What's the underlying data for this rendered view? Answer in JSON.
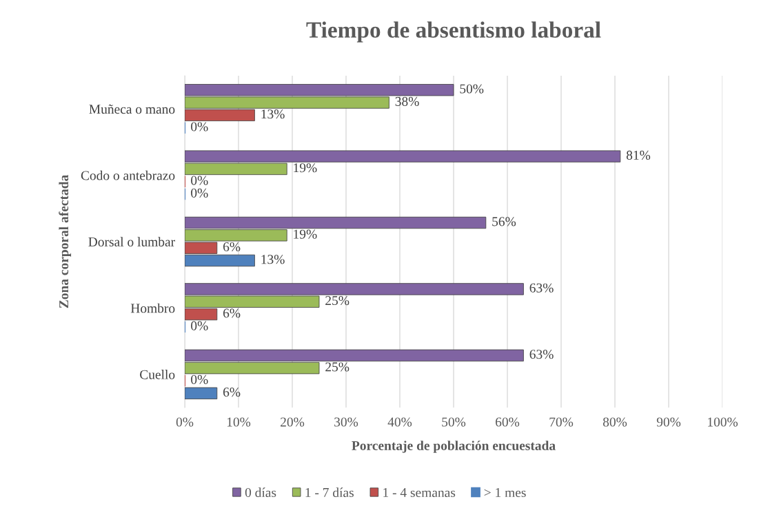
{
  "chart_data": {
    "type": "bar",
    "orientation": "horizontal",
    "title": "Tiempo de absentismo laboral",
    "xlabel": "Porcentaje de población encuestada",
    "ylabel": "Zona corporal afectada",
    "categories": [
      "Muñeca o mano",
      "Codo o antebrazo",
      "Dorsal o lumbar",
      "Hombro",
      "Cuello"
    ],
    "series": [
      {
        "name": "0 días",
        "color": "#8064a2",
        "values": [
          50,
          81,
          56,
          63,
          63
        ],
        "value_labels": [
          "50%",
          "81%",
          "56%",
          "63%",
          "63%"
        ]
      },
      {
        "name": "1 - 7 días",
        "color": "#9bbb59",
        "values": [
          38,
          19,
          19,
          25,
          25
        ],
        "value_labels": [
          "38%",
          "19%",
          "19%",
          "25%",
          "25%"
        ]
      },
      {
        "name": "1 - 4 semanas",
        "color": "#c0504d",
        "values": [
          13,
          0,
          6,
          6,
          0
        ],
        "value_labels": [
          "13%",
          "0%",
          "6%",
          "6%",
          "0%"
        ]
      },
      {
        "name": "> 1 mes",
        "color": "#4f81bd",
        "values": [
          0,
          0,
          13,
          0,
          6
        ],
        "value_labels": [
          "0%",
          "0%",
          "13%",
          "0%",
          "6%"
        ]
      }
    ],
    "xlim": [
      0,
      100
    ],
    "xticks": [
      {
        "value": 0,
        "label": "0%"
      },
      {
        "value": 10,
        "label": "10%"
      },
      {
        "value": 20,
        "label": "20%"
      },
      {
        "value": 30,
        "label": "30%"
      },
      {
        "value": 40,
        "label": "40%"
      },
      {
        "value": 50,
        "label": "50%"
      },
      {
        "value": 60,
        "label": "60%"
      },
      {
        "value": 70,
        "label": "70%"
      },
      {
        "value": 80,
        "label": "80%"
      },
      {
        "value": 90,
        "label": "90%"
      },
      {
        "value": 100,
        "label": "100%"
      }
    ],
    "grid": "x",
    "legend": "bottom"
  }
}
